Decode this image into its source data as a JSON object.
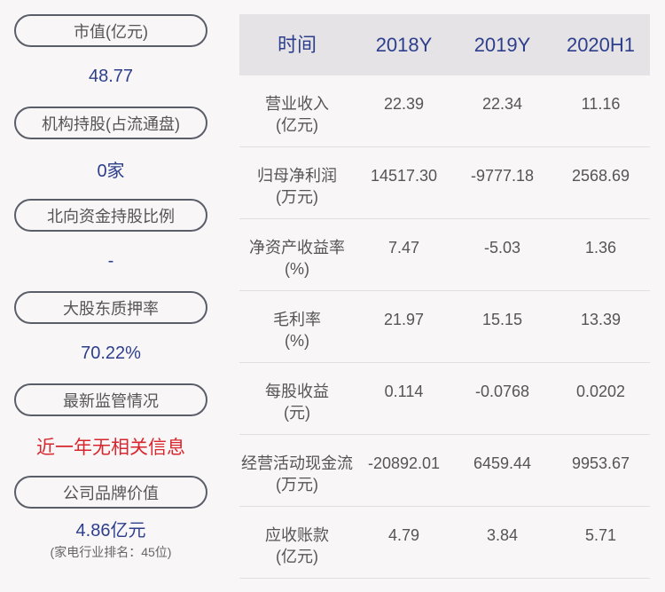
{
  "left": [
    {
      "label": "市值(亿元)",
      "value": "48.77"
    },
    {
      "label": "机构持股(占流通盘)",
      "value": "0家"
    },
    {
      "label": "北向资金持股比例",
      "value": "-"
    },
    {
      "label": "大股东质押率",
      "value": "70.22%"
    },
    {
      "label": "最新监管情况",
      "value": "近一年无相关信息",
      "highlight": "#d8262e"
    },
    {
      "label": "公司品牌价值",
      "value": "4.86亿元",
      "sub": "(家电行业排名：45位)"
    }
  ],
  "table": {
    "headers": [
      "时间",
      "2018Y",
      "2019Y",
      "2020H1"
    ],
    "rows": [
      {
        "name": "营业收入",
        "unit": "(亿元)",
        "values": [
          "22.39",
          "22.34",
          "11.16"
        ]
      },
      {
        "name": "归母净利润",
        "unit": "(万元)",
        "values": [
          "14517.30",
          "-9777.18",
          "2568.69"
        ]
      },
      {
        "name": "净资产收益率",
        "unit": "(%)",
        "values": [
          "7.47",
          "-5.03",
          "1.36"
        ]
      },
      {
        "name": "毛利率",
        "unit": "(%)",
        "values": [
          "21.97",
          "15.15",
          "13.39"
        ]
      },
      {
        "name": "每股收益",
        "unit": "(元)",
        "values": [
          "0.114",
          "-0.0768",
          "0.0202"
        ]
      },
      {
        "name": "经营活动现金流",
        "unit": "(万元)",
        "values": [
          "-20892.01",
          "6459.44",
          "9953.67"
        ]
      },
      {
        "name": "应收账款",
        "unit": "(亿元)",
        "values": [
          "4.79",
          "3.84",
          "5.71"
        ]
      }
    ]
  },
  "colors": {
    "accent": "#2d3f8c",
    "alert": "#d8262e",
    "header_bg": "#e5e3e5"
  }
}
